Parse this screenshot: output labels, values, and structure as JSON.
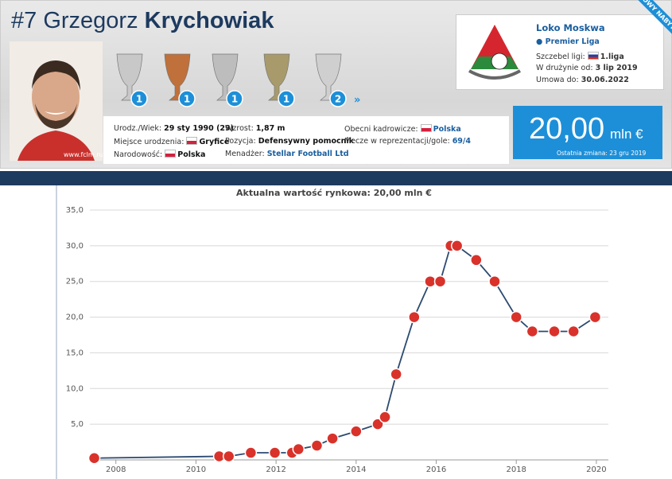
{
  "header": {
    "number": "#7",
    "first_name": "Grzegorz",
    "last_name": "Krychowiak",
    "photo_caption": "www.fclm.ru",
    "ribbon": "NOWY NABYTEK"
  },
  "trophy_counts": [
    1,
    1,
    1,
    1,
    2
  ],
  "info": [
    {
      "label": "Urodz./Wiek:",
      "value": "29 sty 1990 (29)"
    },
    {
      "label": "Miejsce urodzenia:",
      "value": "Gryfice"
    },
    {
      "label": "Narodowość:",
      "value": "Polska"
    },
    {
      "label": "Wzrost:",
      "value": "1,87 m"
    },
    {
      "label": "Pozycja:",
      "value": "Defensywny pomocnik"
    },
    {
      "label": "Menadżer:",
      "value": "Stellar Football Ltd"
    },
    {
      "label": "Obecni kadrowicze:",
      "value": "Polska"
    },
    {
      "label": "Mecze w reprezentacji/gole:",
      "value": "69/4"
    }
  ],
  "club": {
    "name": "Loko Moskwa",
    "league": "Premier Liga",
    "rows": [
      {
        "label": "Szczebel ligi:",
        "value": "1.liga"
      },
      {
        "label": "W drużynie od:",
        "value": "3 lip 2019"
      },
      {
        "label": "Umowa do:",
        "value": "30.06.2022"
      }
    ]
  },
  "market_value": {
    "amount": "20,00",
    "unit": "mln €",
    "last_change": "Ostatnia zmiana: 23 gru 2019"
  },
  "chart_data": {
    "type": "line",
    "title": "Aktualna wartość rynkowa: 20,00 mln €",
    "x": [
      2007.46,
      2010.58,
      2010.82,
      2011.37,
      2011.97,
      2012.4,
      2012.56,
      2013.02,
      2013.41,
      2014.0,
      2014.54,
      2014.72,
      2015.0,
      2015.45,
      2015.85,
      2016.1,
      2016.36,
      2016.52,
      2017.0,
      2017.46,
      2018.0,
      2018.4,
      2018.95,
      2019.43,
      2019.97
    ],
    "series": [
      {
        "color": "#2c4a70",
        "marker_color": "#d9322b",
        "values": [
          0.25,
          0.5,
          0.5,
          1,
          1,
          1,
          1.5,
          2,
          3,
          4,
          5,
          6,
          12,
          20,
          25,
          25,
          30,
          30,
          28,
          25,
          20,
          18,
          18,
          18,
          20
        ]
      }
    ],
    "xlim": [
      2007.35,
      2020.3
    ],
    "xticks": [
      2008,
      2010,
      2012,
      2014,
      2016,
      2018,
      2020
    ],
    "ylim": [
      0,
      35
    ],
    "yticks": [
      {
        "value": 5,
        "label": "5,0"
      },
      {
        "value": 10,
        "label": "10,0"
      },
      {
        "value": 15,
        "label": "15,0"
      },
      {
        "value": 20,
        "label": "20,0"
      },
      {
        "value": 25,
        "label": "25,0"
      },
      {
        "value": 30,
        "label": "30,0"
      },
      {
        "value": 35,
        "label": "35,0"
      }
    ],
    "grid": true
  }
}
